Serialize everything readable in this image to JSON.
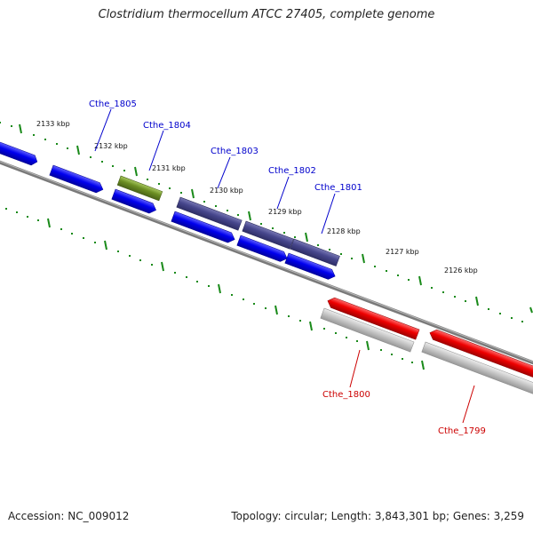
{
  "title": "Clostridium thermocellum ATCC 27405, complete genome",
  "footer": {
    "accession": "Accession: NC_009012",
    "summary": "Topology: circular; Length: 3,843,301 bp; Genes: 3,259"
  },
  "colors": {
    "forward_cds": "#0000ee",
    "forward_dark": "#46468c",
    "forward_olive": "#6b8e23",
    "reverse_cds": "#ee0000",
    "reverse_shadow": "#bdbdbd",
    "backbone": "#7a7a7a",
    "ticks": "#1a8a1a",
    "label_forward": "#0000cc",
    "label_reverse": "#cc0000"
  },
  "scale_labels": [
    "2133 kbp",
    "2132 kbp",
    "2131 kbp",
    "2130 kbp",
    "2129 kbp",
    "2128 kbp",
    "2127 kbp",
    "2126 kbp"
  ],
  "gene_labels": [
    {
      "text": "Cthe_1805",
      "strand": "forward"
    },
    {
      "text": "Cthe_1804",
      "strand": "forward"
    },
    {
      "text": "Cthe_1803",
      "strand": "forward"
    },
    {
      "text": "Cthe_1802",
      "strand": "forward"
    },
    {
      "text": "Cthe_1801",
      "strand": "forward"
    },
    {
      "text": "Cthe_1800",
      "strand": "reverse"
    },
    {
      "text": "Cthe_1799",
      "strand": "reverse"
    }
  ]
}
